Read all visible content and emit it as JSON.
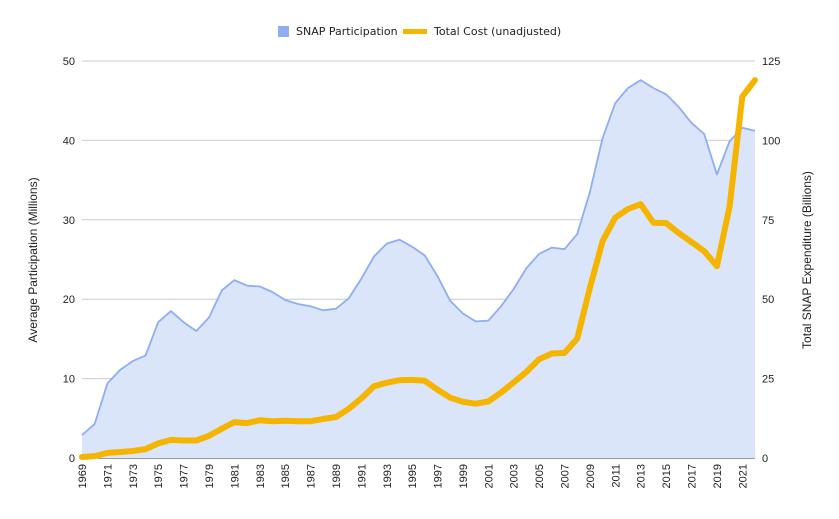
{
  "chart_data": {
    "type": "area+line",
    "legend": {
      "position": "top",
      "entries": [
        {
          "label": "SNAP Participation",
          "color": "#8fadf2"
        },
        {
          "label": "Total Cost (unadjusted)",
          "color": "#f5b400"
        }
      ]
    },
    "ylabel_left": "Average Participation (Millions)",
    "ylabel_right": "Total SNAP Expenditure (Billions)",
    "ylim_left": [
      0,
      50
    ],
    "ylim_right": [
      0,
      125
    ],
    "yticks_left": [
      "0",
      "10",
      "20",
      "30",
      "40",
      "50"
    ],
    "yticks_right": [
      "0",
      "25",
      "50",
      "75",
      "100",
      "125"
    ],
    "grid": true,
    "x": [
      1969,
      1970,
      1971,
      1972,
      1973,
      1974,
      1975,
      1976,
      1977,
      1978,
      1979,
      1980,
      1981,
      1982,
      1983,
      1984,
      1985,
      1986,
      1987,
      1988,
      1989,
      1990,
      1991,
      1992,
      1993,
      1994,
      1995,
      1996,
      1997,
      1998,
      1999,
      2000,
      2001,
      2002,
      2003,
      2004,
      2005,
      2006,
      2007,
      2008,
      2009,
      2010,
      2011,
      2012,
      2013,
      2014,
      2015,
      2016,
      2017,
      2018,
      2019,
      2020,
      2021,
      2022
    ],
    "xticks": [
      "1969",
      "1971",
      "1973",
      "1975",
      "1977",
      "1979",
      "1981",
      "1983",
      "1985",
      "1987",
      "1989",
      "1991",
      "1993",
      "1995",
      "1997",
      "1999",
      "2001",
      "2003",
      "2005",
      "2007",
      "2009",
      "2011",
      "2013",
      "2015",
      "2017",
      "2019",
      "2021"
    ],
    "series": [
      {
        "name": "SNAP Participation",
        "axis": "left",
        "kind": "area",
        "color": "#8fadf2",
        "fill": "#dbe5f9",
        "values": [
          2.9,
          4.3,
          9.4,
          11.1,
          12.2,
          12.9,
          17.1,
          18.5,
          17.1,
          16.0,
          17.7,
          21.1,
          22.4,
          21.7,
          21.6,
          20.9,
          19.9,
          19.4,
          19.1,
          18.6,
          18.8,
          20.1,
          22.6,
          25.4,
          27.0,
          27.5,
          26.6,
          25.5,
          22.9,
          19.8,
          18.2,
          17.2,
          17.3,
          19.1,
          21.3,
          23.9,
          25.7,
          26.5,
          26.3,
          28.2,
          33.5,
          40.3,
          44.7,
          46.6,
          47.6,
          46.6,
          45.8,
          44.2,
          42.2,
          40.8,
          35.7,
          39.9,
          41.6,
          41.2
        ]
      },
      {
        "name": "Total Cost (unadjusted)",
        "axis": "right",
        "kind": "line",
        "color": "#f5b400",
        "values": [
          0.3,
          0.6,
          1.6,
          1.9,
          2.2,
          2.8,
          4.6,
          5.7,
          5.5,
          5.5,
          7.0,
          9.2,
          11.3,
          11.0,
          11.9,
          11.6,
          11.7,
          11.6,
          11.6,
          12.3,
          12.9,
          15.5,
          18.8,
          22.6,
          23.7,
          24.5,
          24.6,
          24.3,
          21.5,
          19.0,
          17.7,
          17.1,
          17.8,
          20.6,
          23.8,
          27.1,
          31.1,
          32.9,
          33.1,
          37.6,
          53.6,
          68.3,
          75.7,
          78.4,
          79.9,
          74.1,
          74.0,
          70.8,
          68.0,
          65.1,
          60.4,
          79.2,
          113.8,
          119.0
        ]
      }
    ]
  }
}
